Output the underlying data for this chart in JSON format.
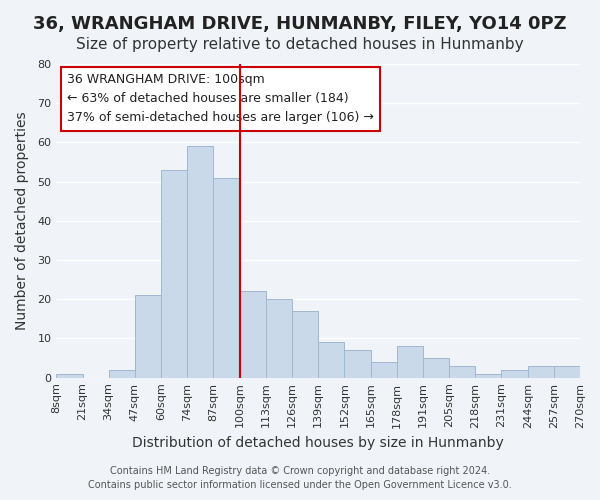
{
  "title": "36, WRANGHAM DRIVE, HUNMANBY, FILEY, YO14 0PZ",
  "subtitle": "Size of property relative to detached houses in Hunmanby",
  "xlabel": "Distribution of detached houses by size in Hunmanby",
  "ylabel": "Number of detached properties",
  "bar_labels": [
    "8sqm",
    "21sqm",
    "34sqm",
    "47sqm",
    "60sqm",
    "74sqm",
    "87sqm",
    "100sqm",
    "113sqm",
    "126sqm",
    "139sqm",
    "152sqm",
    "165sqm",
    "178sqm",
    "191sqm",
    "205sqm",
    "218sqm",
    "231sqm",
    "244sqm",
    "257sqm",
    "270sqm"
  ],
  "bar_heights": [
    1,
    0,
    2,
    21,
    53,
    59,
    51,
    22,
    20,
    17,
    9,
    7,
    4,
    8,
    5,
    3,
    1,
    2,
    3,
    3
  ],
  "bar_color": "#c9d9ea",
  "bar_edge_color": "#a0b8d0",
  "vline_label": "100sqm",
  "vline_color": "#cc0000",
  "annotation_title": "36 WRANGHAM DRIVE: 100sqm",
  "annotation_line1": "← 63% of detached houses are smaller (184)",
  "annotation_line2": "37% of semi-detached houses are larger (106) →",
  "annotation_box_color": "#ffffff",
  "annotation_box_edge": "#cc0000",
  "ylim": [
    0,
    80
  ],
  "yticks": [
    0,
    10,
    20,
    30,
    40,
    50,
    60,
    70,
    80
  ],
  "footer1": "Contains HM Land Registry data © Crown copyright and database right 2024.",
  "footer2": "Contains public sector information licensed under the Open Government Licence v3.0.",
  "background_color": "#f0f4f8",
  "grid_color": "#ffffff",
  "title_fontsize": 13,
  "subtitle_fontsize": 11,
  "axis_label_fontsize": 10,
  "tick_fontsize": 8,
  "annotation_fontsize": 9,
  "footer_fontsize": 7
}
